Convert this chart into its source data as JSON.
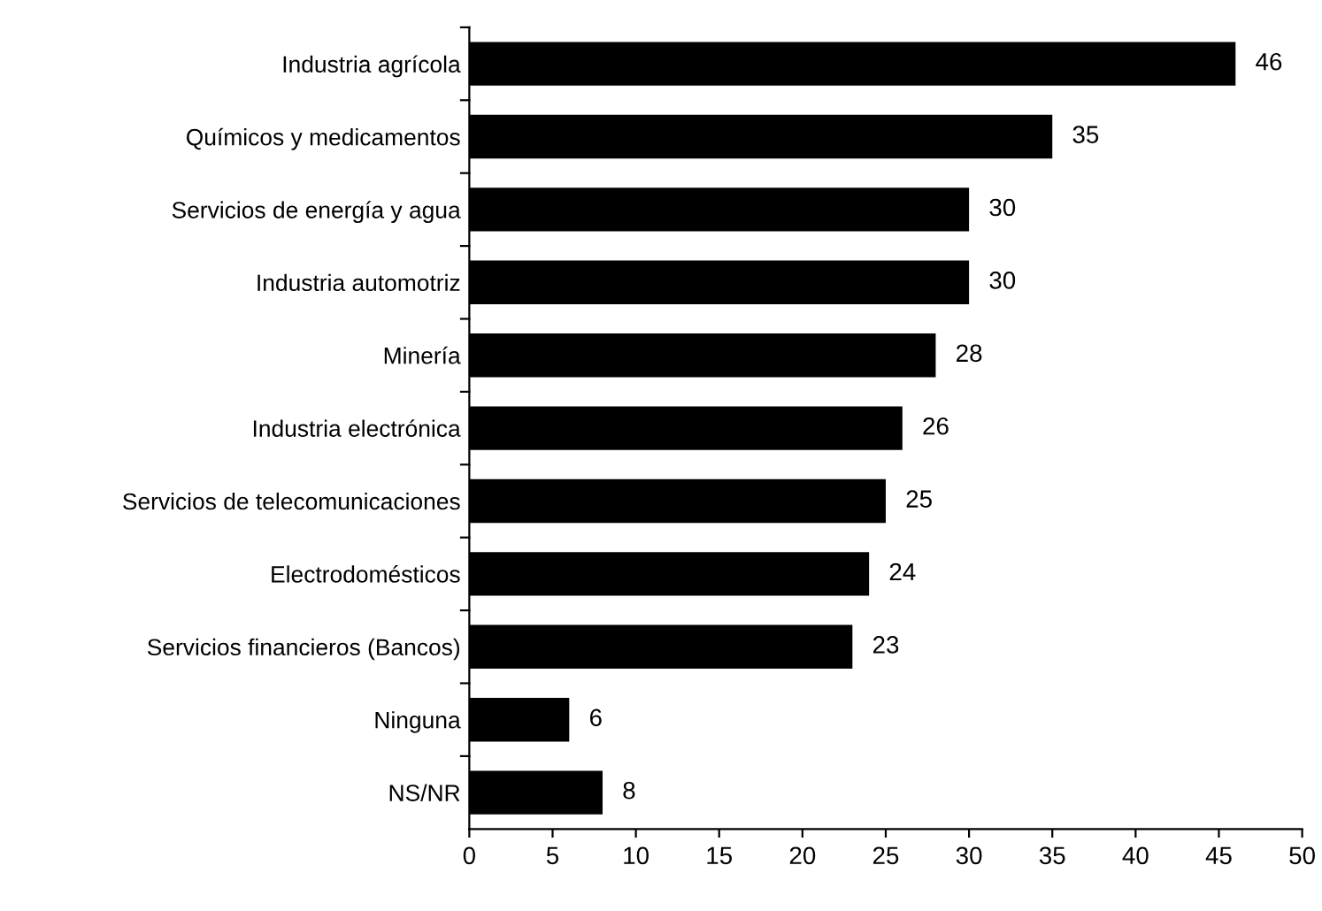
{
  "chart_data": {
    "type": "bar",
    "orientation": "horizontal",
    "categories": [
      "Industria agrícola",
      "Químicos y medicamentos",
      "Servicios de energía y agua",
      "Industria automotriz",
      "Minería",
      "Industria electrónica",
      "Servicios de telecomunicaciones",
      "Electrodomésticos",
      "Servicios financieros (Bancos)",
      "Ninguna",
      "NS/NR"
    ],
    "values": [
      46,
      35,
      30,
      30,
      28,
      26,
      25,
      24,
      23,
      6,
      8
    ],
    "color": "#000000",
    "data_labels": true,
    "grid": false,
    "legend": false,
    "xlim": [
      0,
      50
    ],
    "xticks": [
      0,
      5,
      10,
      15,
      20,
      25,
      30,
      35,
      40,
      45,
      50
    ]
  }
}
